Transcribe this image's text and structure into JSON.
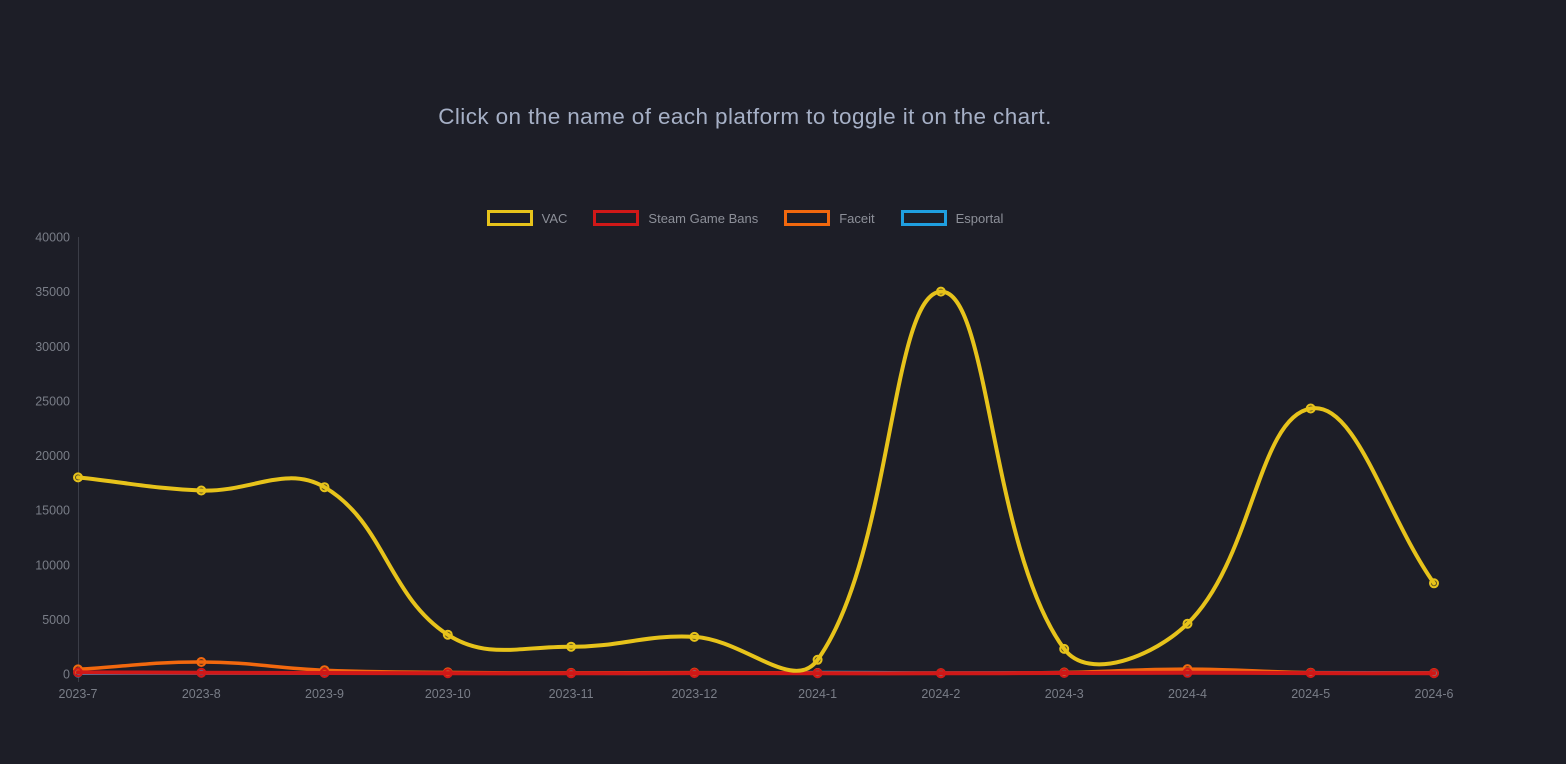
{
  "page": {
    "background": "#1d1e27"
  },
  "title": {
    "text": "Click on the name of each platform to toggle it on the chart."
  },
  "chart_data": {
    "type": "line",
    "title": "Click on the name of each platform to toggle it on the chart.",
    "categories": [
      "2023-7",
      "2023-8",
      "2023-9",
      "2023-10",
      "2023-11",
      "2023-12",
      "2024-1",
      "2024-2",
      "2024-3",
      "2024-4",
      "2024-5",
      "2024-6"
    ],
    "series": [
      {
        "name": "VAC",
        "color": "#e7c31b",
        "line_width": 4,
        "point_radius": 4,
        "values": [
          18000,
          16800,
          17100,
          3600,
          2500,
          3400,
          1300,
          35000,
          2300,
          4600,
          24300,
          8300
        ]
      },
      {
        "name": "Steam Game Bans",
        "color": "#d01818",
        "line_width": 4,
        "point_radius": 4,
        "values": [
          150,
          120,
          90,
          70,
          60,
          80,
          70,
          60,
          90,
          110,
          80,
          70
        ]
      },
      {
        "name": "Faceit",
        "color": "#f2680e",
        "line_width": 3.5,
        "point_radius": 4,
        "values": [
          420,
          1100,
          350,
          150,
          100,
          130,
          90,
          80,
          140,
          450,
          120,
          90
        ]
      },
      {
        "name": "Esportal",
        "color": "#1f9fe0",
        "line_width": 2.5,
        "point_radius": 3,
        "values": [
          30,
          40,
          30,
          20,
          20,
          25,
          180,
          140,
          170,
          200,
          170,
          140
        ]
      }
    ],
    "xlabel": "",
    "ylabel": "",
    "ylim": [
      0,
      40000
    ],
    "y_ticks": [
      0,
      5000,
      10000,
      15000,
      20000,
      25000,
      30000,
      35000,
      40000
    ],
    "grid": "off",
    "legend_position": "top",
    "curve_tension": 0.4,
    "axis_line_color": "#3b3d47",
    "tick_label_color": "#797d87"
  }
}
